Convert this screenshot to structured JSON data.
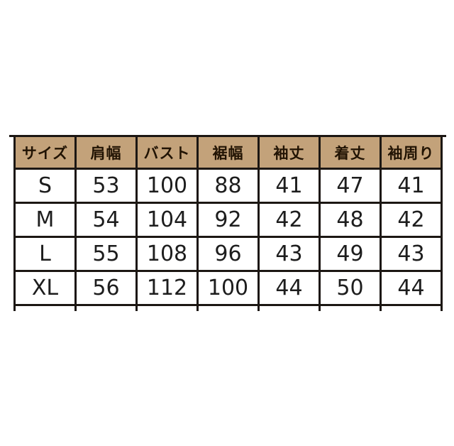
{
  "chart_data": {
    "type": "table",
    "columns": [
      "サイズ",
      "肩幅",
      "バスト",
      "裾幅",
      "袖丈",
      "着丈",
      "袖周り"
    ],
    "rows": [
      [
        "S",
        53,
        100,
        88,
        41,
        47,
        41
      ],
      [
        "M",
        54,
        104,
        92,
        42,
        48,
        42
      ],
      [
        "L",
        55,
        108,
        96,
        43,
        49,
        43
      ],
      [
        "XL",
        56,
        112,
        100,
        44,
        50,
        44
      ]
    ],
    "layout_hints": {
      "header_row": true,
      "grid": "all-borders",
      "columns_equal_width": true
    }
  },
  "colors": {
    "page_bg": "#ffffff",
    "header_bg": "#c3a27a",
    "header_text": "#211303",
    "value_text": "#1d1d1d",
    "border": "#1c1713"
  }
}
